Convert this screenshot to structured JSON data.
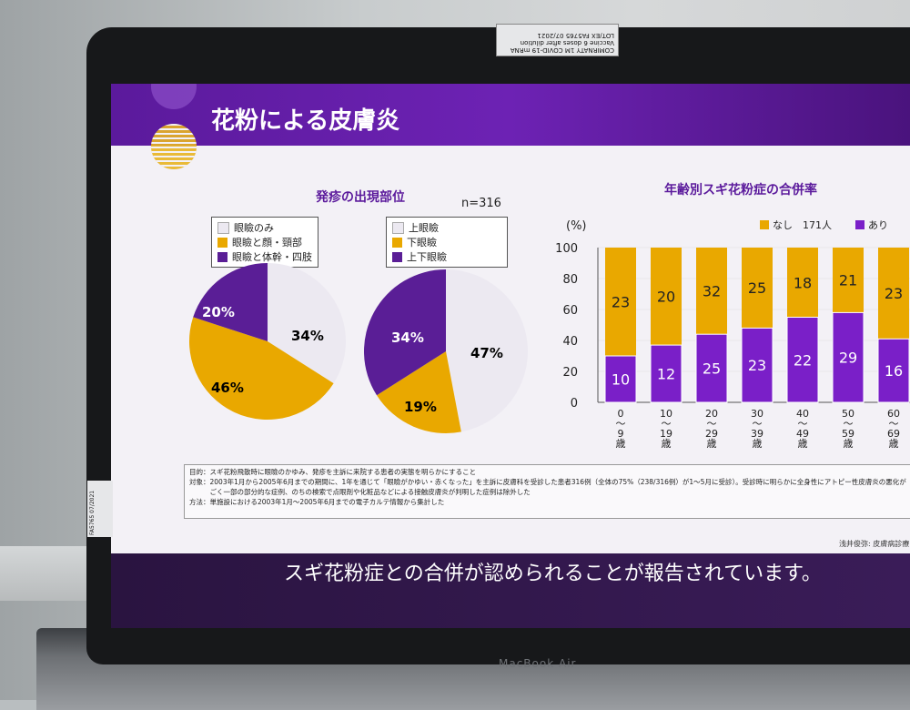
{
  "slide": {
    "title": "花粉による皮膚炎",
    "left_subtitle": "発疹の出現部位",
    "right_subtitle": "年齢別スギ花粉症の合併率",
    "n_label": "n=316"
  },
  "pie1": {
    "legend": [
      "眼瞼のみ",
      "眼瞼と顔・頸部",
      "眼瞼と体幹・四肢"
    ],
    "slices": [
      {
        "label": "34%",
        "value": 34,
        "color": "#ece9f1"
      },
      {
        "label": "46%",
        "value": 46,
        "color": "#e9a800"
      },
      {
        "label": "20%",
        "value": 20,
        "color": "#5a1e96"
      }
    ]
  },
  "pie2": {
    "legend": [
      "上眼瞼",
      "下眼瞼",
      "上下眼瞼"
    ],
    "slices": [
      {
        "label": "47%",
        "value": 47,
        "color": "#ece9f1"
      },
      {
        "label": "19%",
        "value": 19,
        "color": "#e9a800"
      },
      {
        "label": "34%",
        "value": 34,
        "color": "#5a1e96"
      }
    ]
  },
  "chart_data": {
    "type": "bar",
    "ylabel": "(%)",
    "ylim": [
      0,
      100
    ],
    "yticks": [
      "100",
      "80",
      "60",
      "40",
      "20",
      "0"
    ],
    "legend": [
      "なし　171人",
      "あり"
    ],
    "categories": [
      "0〜9歳",
      "10〜19歳",
      "20〜29歳",
      "30〜39歳",
      "40〜49歳",
      "50〜59歳",
      "60〜69歳"
    ],
    "cat_lines": [
      [
        "0",
        "〜",
        "9",
        "歳"
      ],
      [
        "10",
        "〜",
        "19",
        "歳"
      ],
      [
        "20",
        "〜",
        "29",
        "歳"
      ],
      [
        "30",
        "〜",
        "39",
        "歳"
      ],
      [
        "40",
        "〜",
        "49",
        "歳"
      ],
      [
        "50",
        "〜",
        "59",
        "歳"
      ],
      [
        "60",
        "〜",
        "69",
        "歳"
      ]
    ],
    "series": [
      {
        "name": "あり",
        "values": [
          10,
          12,
          25,
          23,
          22,
          29,
          16
        ],
        "pct": [
          30,
          37,
          44,
          48,
          55,
          58,
          41
        ],
        "color": "#7a1fc8"
      },
      {
        "name": "なし　171人",
        "values": [
          23,
          20,
          32,
          25,
          18,
          21,
          23
        ],
        "color": "#e9a800"
      }
    ]
  },
  "note": {
    "lines": [
      "目的：スギ花粉飛散時に眼瞼のかゆみ、発疹を主訴に来院する患者の実態を明らかにすること",
      "対象：2003年1月から2005年6月までの期間に、1年を通じて「眼瞼がかゆい・赤くなった」を主訴に皮膚科を受診した患者316例（全体の75%（238/316例）が1〜5月に受診）。受診時に明らかに全身性にアトピー性皮膚炎の悪化が",
      "　　　ごく一部の部分的な症例、のちの検索で点眼剤や化粧品などによる接触皮膚炎が判明した症例は除外した",
      "方法：単施設における2003年1月〜2005年6月までの電子カルテ情報から集計した"
    ]
  },
  "source": "浅井俊弥: 皮膚病診療",
  "caption": "スギ花粉症との合併が認められることが報告されています。",
  "device_brand": "MacBook Air",
  "sticker_text": "COMIRNATY 1M COVID-19 mRNA Vaccine 6 doses after dilution LOT/EX FA5765 07/2021",
  "sticker2_text": "FA5765 07/2021"
}
